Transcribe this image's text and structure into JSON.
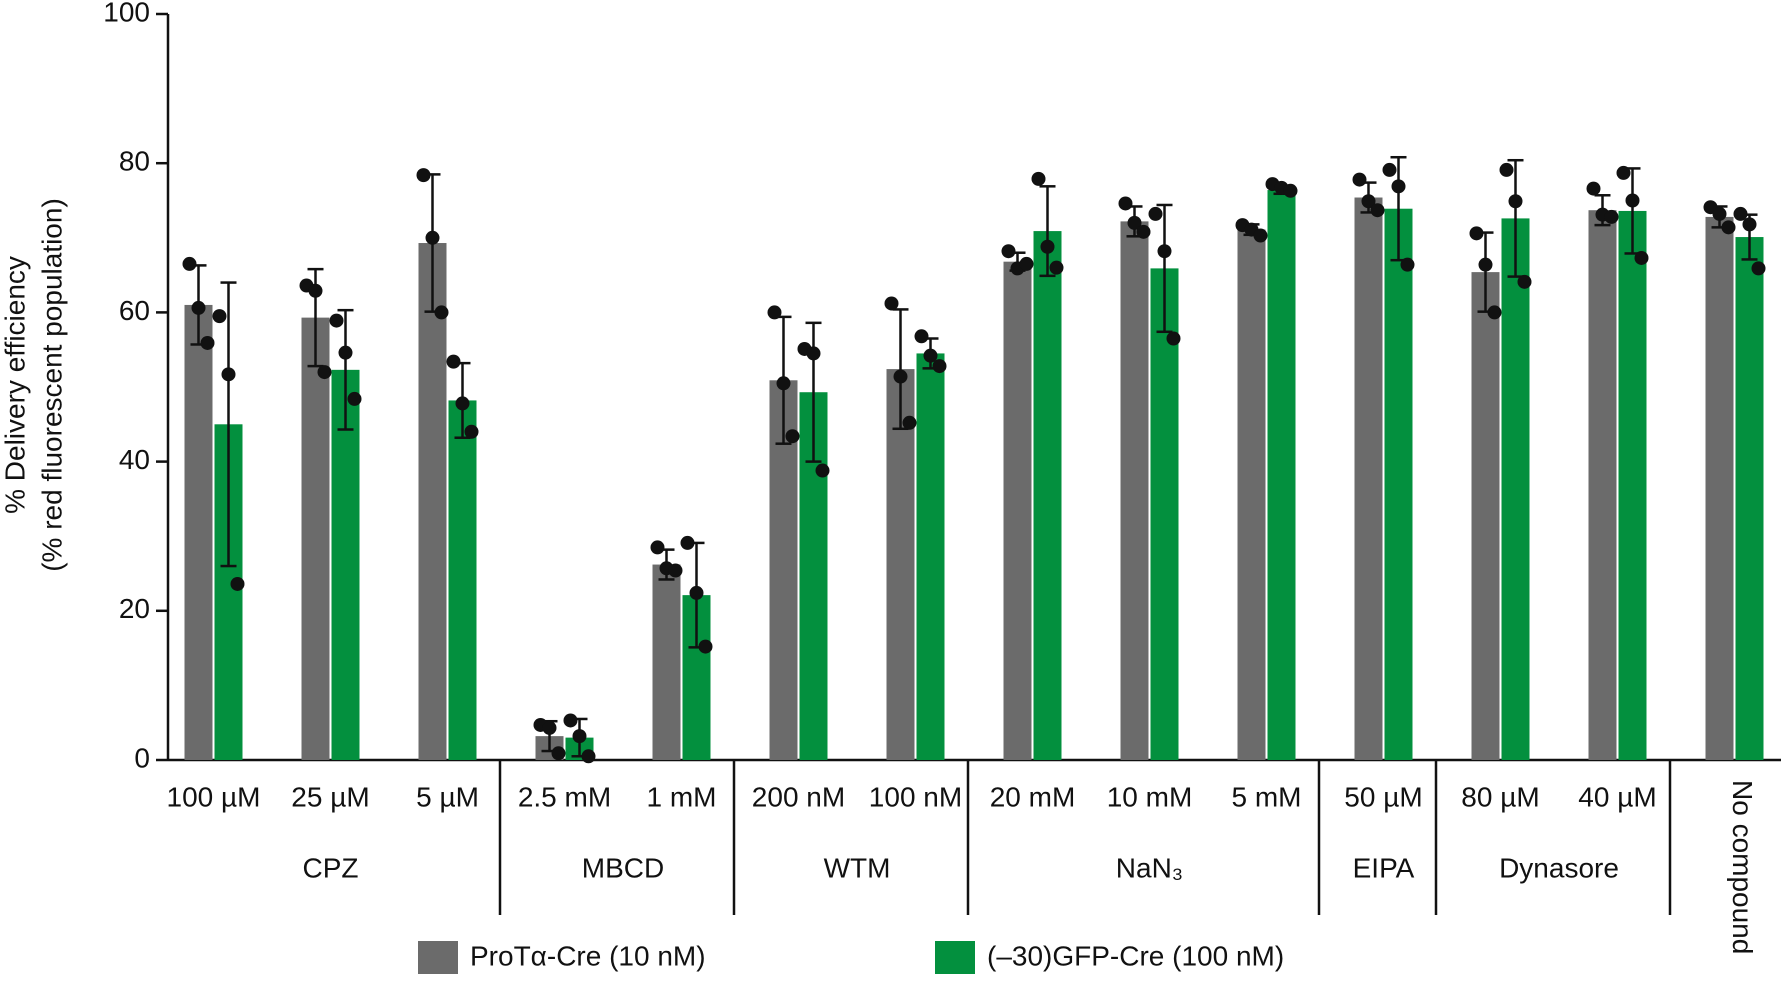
{
  "chart_data": {
    "type": "bar",
    "ylabel": [
      "% Delivery efficiency",
      "(% red fluorescent population)"
    ],
    "categories": [
      "100 µM",
      "25 µM",
      "5 µM",
      "2.5 mM",
      "1 mM",
      "200 nM",
      "100 nM",
      "20 mM",
      "10 mM",
      "5 mM",
      "50 µM",
      "80 µM",
      "40 µM",
      null
    ],
    "groups": [
      {
        "name": "CPZ",
        "start": 0,
        "end": 2
      },
      {
        "name": "MBCD",
        "start": 3,
        "end": 4
      },
      {
        "name": "WTM",
        "start": 5,
        "end": 6
      },
      {
        "name": "NaN₃",
        "start": 7,
        "end": 9
      },
      {
        "name": "EIPA",
        "start": 10,
        "end": 10
      },
      {
        "name": "Dynasore",
        "start": 11,
        "end": 12
      },
      {
        "name": "No compound",
        "start": 13,
        "end": 13
      }
    ],
    "series": [
      {
        "name": "ProTα-Cre (10 nM)",
        "color": "#6b6b6b",
        "values": [
          61.0,
          59.3,
          69.3,
          3.2,
          26.2,
          50.9,
          52.4,
          66.8,
          72.2,
          71.1,
          75.4,
          65.4,
          73.7,
          72.8
        ],
        "errors": [
          5.3,
          6.5,
          9.2,
          2.0,
          2.0,
          8.5,
          8.0,
          1.2,
          2.0,
          0.7,
          2.0,
          5.3,
          2.0,
          1.4
        ],
        "points": [
          [
            66.5,
            60.6,
            55.9
          ],
          [
            63.6,
            62.9,
            52.0
          ],
          [
            78.4,
            70.0,
            60.0
          ],
          [
            4.7,
            4.3,
            0.9
          ],
          [
            28.5,
            25.7,
            25.4
          ],
          [
            60.0,
            50.5,
            43.4
          ],
          [
            61.2,
            51.4,
            45.2
          ],
          [
            68.2,
            65.9,
            66.5
          ],
          [
            74.6,
            72.0,
            70.8
          ],
          [
            71.7,
            71.1,
            70.3
          ],
          [
            77.8,
            74.9,
            73.7
          ],
          [
            70.6,
            66.4,
            60.0
          ],
          [
            76.6,
            73.1,
            72.8
          ],
          [
            74.1,
            73.2,
            71.4
          ]
        ]
      },
      {
        "name": "(–30)GFP-Cre (100 nM)",
        "color": "#03903e",
        "values": [
          45.0,
          52.3,
          48.2,
          3.0,
          22.1,
          49.3,
          54.5,
          70.9,
          65.9,
          76.4,
          73.9,
          72.6,
          73.6,
          70.1
        ],
        "errors": [
          19.0,
          8.0,
          5.0,
          2.5,
          7.0,
          9.3,
          2.0,
          6.0,
          8.5,
          0.5,
          6.9,
          7.8,
          5.7,
          3.0
        ],
        "points": [
          [
            59.5,
            51.7,
            23.6
          ],
          [
            58.9,
            54.6,
            48.4
          ],
          [
            53.4,
            47.8,
            44.0
          ],
          [
            5.3,
            3.2,
            0.5
          ],
          [
            29.1,
            22.4,
            15.2
          ],
          [
            55.1,
            54.5,
            38.8
          ],
          [
            56.8,
            54.2,
            52.8
          ],
          [
            77.9,
            68.8,
            66.0
          ],
          [
            73.2,
            68.2,
            56.5
          ],
          [
            77.2,
            76.7,
            76.3
          ],
          [
            79.1,
            76.9,
            66.4
          ],
          [
            79.1,
            74.9,
            64.1
          ],
          [
            78.7,
            75.0,
            67.3
          ],
          [
            73.2,
            71.8,
            65.9
          ]
        ]
      }
    ],
    "ylim": [
      0,
      100
    ],
    "yticks": [
      0,
      20,
      40,
      60,
      80,
      100
    ]
  }
}
